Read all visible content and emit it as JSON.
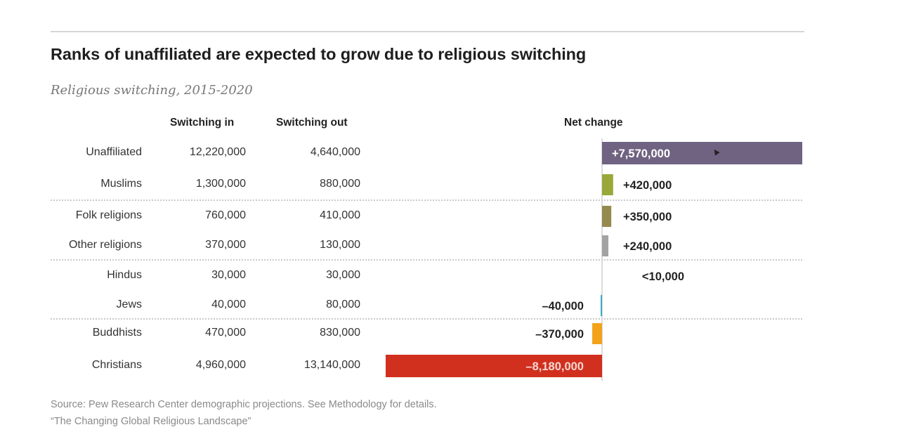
{
  "chart_data": {
    "type": "bar",
    "title": "Ranks of unaffiliated are expected to grow due to religious switching",
    "subtitle": "Religious switching, 2015-2020",
    "columns": {
      "switching_in": "Switching in",
      "switching_out": "Switching out",
      "net_change": "Net change"
    },
    "rows": [
      {
        "label": "Unaffiliated",
        "switching_in": "12,220,000",
        "switching_out": "4,640,000",
        "net": 7570000,
        "net_label": "+7,570,000",
        "color": "#6f6381",
        "label_inside": true
      },
      {
        "label": "Muslims",
        "switching_in": "1,300,000",
        "switching_out": "880,000",
        "net": 420000,
        "net_label": "+420,000",
        "color": "#9aa83a",
        "label_inside": false
      },
      {
        "label": "Folk religions",
        "switching_in": "760,000",
        "switching_out": "410,000",
        "net": 350000,
        "net_label": "+350,000",
        "color": "#948a4e",
        "label_inside": false
      },
      {
        "label": "Other religions",
        "switching_in": "370,000",
        "switching_out": "130,000",
        "net": 240000,
        "net_label": "+240,000",
        "color": "#a3a3a3",
        "label_inside": false
      },
      {
        "label": "Hindus",
        "switching_in": "30,000",
        "switching_out": "30,000",
        "net": 0,
        "net_label": "<10,000",
        "color": "#e28a2b",
        "label_inside": false
      },
      {
        "label": "Jews",
        "switching_in": "40,000",
        "switching_out": "80,000",
        "net": -40000,
        "net_label": "-40,000",
        "color": "#3fa9c9",
        "label_inside": false
      },
      {
        "label": "Buddhists",
        "switching_in": "470,000",
        "switching_out": "830,000",
        "net": -370000,
        "net_label": "-370,000",
        "color": "#f2a31b",
        "label_inside": false
      },
      {
        "label": "Christians",
        "switching_in": "4,960,000",
        "switching_out": "13,140,000",
        "net": -8180000,
        "net_label": "-8,180,000",
        "color": "#d1301f",
        "label_inside": true
      }
    ],
    "xlim": [
      -8180000,
      7570000
    ],
    "grid": false,
    "legend": "none"
  },
  "footer": {
    "source": "Source: Pew Research Center demographic projections. See Methodology for details.",
    "report": "“The Changing Global Religious Landscape”"
  }
}
